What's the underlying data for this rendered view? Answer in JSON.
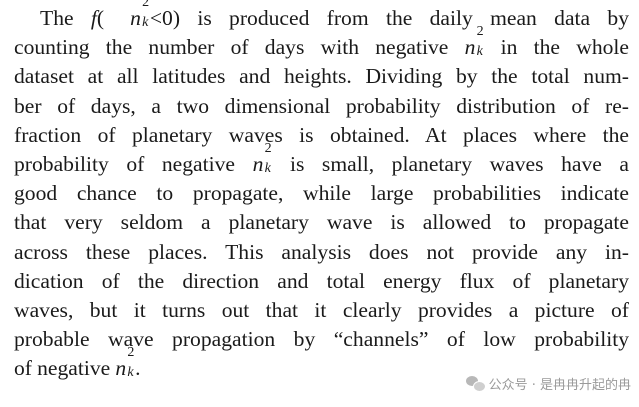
{
  "paragraph": {
    "l1_pre": "The ",
    "f_label": "f",
    "l1_open": "(",
    "n_sym": "n",
    "sup2": "2",
    "sub_k": "k",
    "l1_cond": "<0)",
    "l1_post": " is produced from the daily mean data by",
    "l2_pre": "counting the number of days with negative ",
    "l2_post": " in the whole",
    "l3": "dataset at all latitudes and heights. Dividing by the total num-",
    "l4": "ber of days, a two dimensional probability distribution of re-",
    "l5": "fraction of planetary waves is obtained. At places where the",
    "l6_pre": "probability of negative ",
    "l6_post": " is small, planetary waves have a",
    "l7": "good chance to propagate, while large probabilities indicate",
    "l8": "that very seldom a planetary wave is allowed to propagate",
    "l9": "across these places. This analysis does not provide any in-",
    "l10": "dication of the direction and total energy flux of planetary",
    "l11": "waves, but it turns out that it clearly provides a picture of",
    "l12": "probable wave propagation by “channels” of low probability",
    "l13_pre": "of negative ",
    "l13_post": "."
  },
  "watermark": {
    "icon": "wechat-icon",
    "text": "公众号 · 是冉冉升起的冉"
  }
}
